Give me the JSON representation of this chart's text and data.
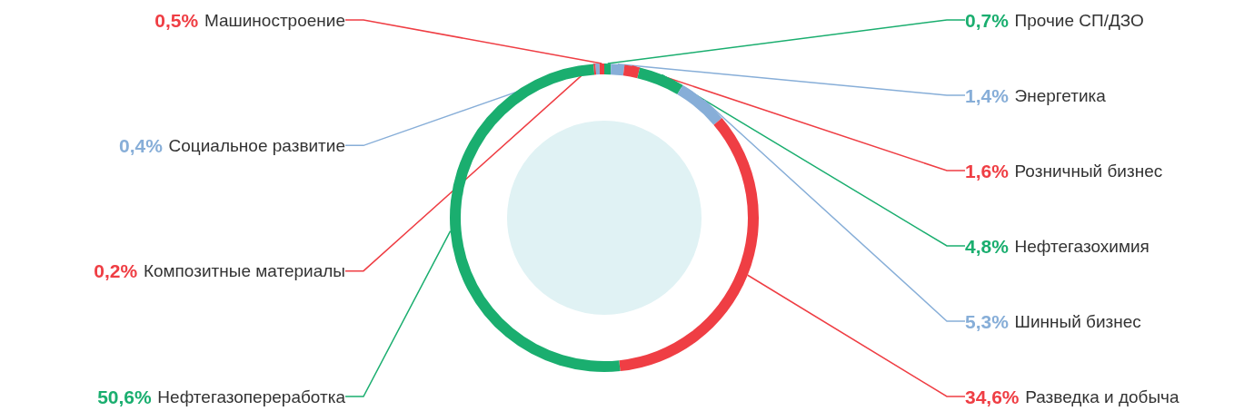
{
  "chart_data": {
    "type": "donut",
    "categories": [
      "Прочие СП/ДЗО",
      "Энергетика",
      "Розничный бизнес",
      "Нефтегазохимия",
      "Шинный бизнес",
      "Разведка и добыча",
      "Нефтегазопереработка",
      "Композитные материалы",
      "Социальное развитие",
      "Машиностроение"
    ],
    "values": [
      0.7,
      1.4,
      1.6,
      4.8,
      5.3,
      34.6,
      50.6,
      0.2,
      0.4,
      0.5
    ],
    "value_labels": [
      "0,7%",
      "1,4%",
      "1,6%",
      "4,8%",
      "5,3%",
      "34,6%",
      "50,6%",
      "0,2%",
      "0,4%",
      "0,5%"
    ],
    "colors": [
      "#1aae6f",
      "#87aed8",
      "#ef3e44",
      "#1aae6f",
      "#87aed8",
      "#ef3e44",
      "#1aae6f",
      "#ef3e44",
      "#87aed8",
      "#ef3e44"
    ],
    "legend": false
  }
}
